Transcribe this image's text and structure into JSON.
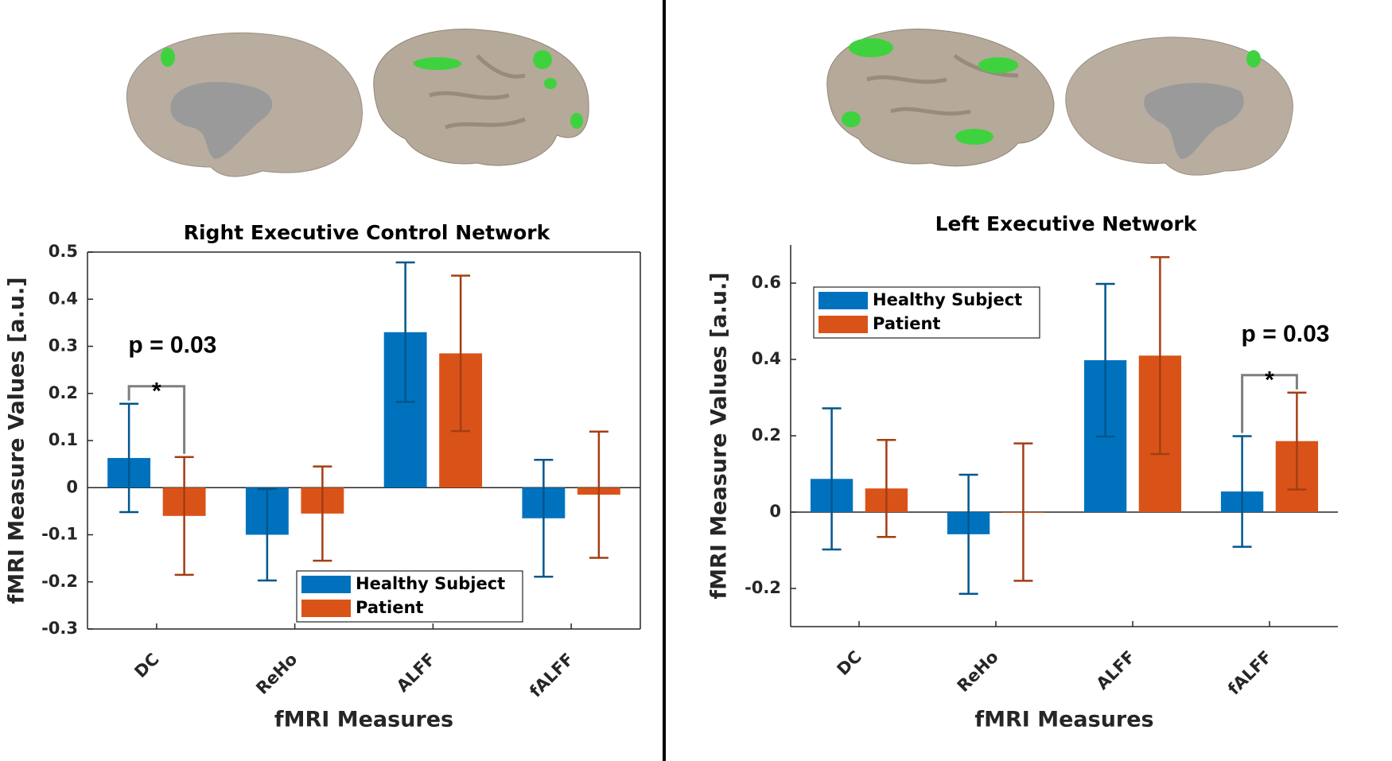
{
  "chart_data": [
    {
      "type": "bar",
      "title": "Right Executive Control Network",
      "xlabel": "fMRI Measures",
      "ylabel": "fMRI Measure Values [a.u.]",
      "categories": [
        "DC",
        "ReHo",
        "ALFF",
        "fALFF"
      ],
      "series": [
        {
          "name": "Healthy Subject",
          "color": "#0072BD",
          "values": [
            0.063,
            -0.1,
            0.33,
            -0.065
          ],
          "errors": [
            0.115,
            0.097,
            0.148,
            0.124
          ]
        },
        {
          "name": "Patient",
          "color": "#D95319",
          "values": [
            -0.06,
            -0.055,
            0.285,
            -0.015
          ],
          "errors": [
            0.125,
            0.1,
            0.165,
            0.134
          ]
        }
      ],
      "ylim": [
        -0.3,
        0.5
      ],
      "yticks": [
        -0.3,
        -0.2,
        -0.1,
        0,
        0.1,
        0.2,
        0.3,
        0.4,
        0.5
      ],
      "legend": "lower right",
      "significance": {
        "category": "DC",
        "label": "p = 0.03",
        "marker": "*"
      }
    },
    {
      "type": "bar",
      "title": "Left Executive Network",
      "xlabel": "fMRI Measures",
      "ylabel": "fMRI Measure Values [a.u.]",
      "categories": [
        "DC",
        "ReHo",
        "ALFF",
        "fALFF"
      ],
      "series": [
        {
          "name": "Healthy Subject",
          "color": "#0072BD",
          "values": [
            0.087,
            -0.058,
            0.398,
            0.054
          ],
          "errors": [
            0.185,
            0.156,
            0.2,
            0.145
          ]
        },
        {
          "name": "Patient",
          "color": "#D95319",
          "values": [
            0.062,
            0,
            0.41,
            0.186
          ],
          "errors": [
            0.127,
            0.18,
            0.258,
            0.127
          ]
        }
      ],
      "ylim": [
        -0.3,
        0.7
      ],
      "yticks": [
        -0.2,
        0,
        0.2,
        0.4,
        0.6
      ],
      "legend": "upper left",
      "significance": {
        "category": "fALFF",
        "label": "p = 0.03",
        "marker": "*"
      }
    }
  ]
}
